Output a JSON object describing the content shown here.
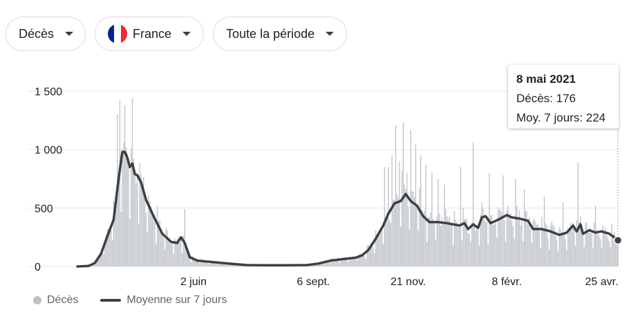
{
  "filters": {
    "metric": "Décès",
    "country": "France",
    "country_flag_colors": [
      "#002395",
      "#ffffff",
      "#ed2939"
    ],
    "period": "Toute la période"
  },
  "tooltip": {
    "date": "8 mai 2021",
    "deaths_label": "Décès: 176",
    "avg_label": "Moy. 7 jours: 224"
  },
  "legend": {
    "bars": "Décès",
    "line": "Moyenne sur 7 jours"
  },
  "colors": {
    "bars": "#bdc1c6",
    "line": "#3c4043",
    "grid": "#e8eaed",
    "axis_text": "#202124"
  },
  "chart_data": {
    "type": "bar",
    "x_start": "2020-03-01",
    "x_end": "2021-05-08",
    "y_ticks": [
      0,
      500,
      1000,
      1500
    ],
    "y_tick_labels": [
      "0",
      "500",
      "1 000",
      "1 500"
    ],
    "ylim": [
      0,
      1500
    ],
    "x_ticks": [
      {
        "date": "2020-06-02",
        "label": "2 juin"
      },
      {
        "date": "2020-09-06",
        "label": "6 sept."
      },
      {
        "date": "2020-11-21",
        "label": "21 nov."
      },
      {
        "date": "2021-02-08",
        "label": "8 févr."
      },
      {
        "date": "2021-04-25",
        "label": "25 avr."
      }
    ],
    "series": [
      {
        "name": "Moyenne sur 7 jours",
        "kind": "line",
        "points": [
          [
            "2020-03-01",
            0
          ],
          [
            "2020-03-10",
            5
          ],
          [
            "2020-03-15",
            30
          ],
          [
            "2020-03-20",
            110
          ],
          [
            "2020-03-25",
            260
          ],
          [
            "2020-03-30",
            400
          ],
          [
            "2020-04-03",
            750
          ],
          [
            "2020-04-06",
            980
          ],
          [
            "2020-04-08",
            980
          ],
          [
            "2020-04-10",
            930
          ],
          [
            "2020-04-12",
            850
          ],
          [
            "2020-04-14",
            880
          ],
          [
            "2020-04-16",
            790
          ],
          [
            "2020-04-18",
            780
          ],
          [
            "2020-04-21",
            720
          ],
          [
            "2020-04-25",
            570
          ],
          [
            "2020-05-01",
            430
          ],
          [
            "2020-05-08",
            280
          ],
          [
            "2020-05-15",
            210
          ],
          [
            "2020-05-20",
            200
          ],
          [
            "2020-05-23",
            250
          ],
          [
            "2020-05-26",
            200
          ],
          [
            "2020-05-30",
            80
          ],
          [
            "2020-06-05",
            50
          ],
          [
            "2020-06-15",
            40
          ],
          [
            "2020-06-30",
            25
          ],
          [
            "2020-07-15",
            12
          ],
          [
            "2020-08-01",
            10
          ],
          [
            "2020-08-15",
            10
          ],
          [
            "2020-09-01",
            12
          ],
          [
            "2020-09-10",
            25
          ],
          [
            "2020-09-20",
            50
          ],
          [
            "2020-10-01",
            65
          ],
          [
            "2020-10-10",
            75
          ],
          [
            "2020-10-15",
            95
          ],
          [
            "2020-10-20",
            140
          ],
          [
            "2020-10-25",
            220
          ],
          [
            "2020-11-01",
            350
          ],
          [
            "2020-11-05",
            450
          ],
          [
            "2020-11-10",
            540
          ],
          [
            "2020-11-15",
            560
          ],
          [
            "2020-11-19",
            620
          ],
          [
            "2020-11-23",
            560
          ],
          [
            "2020-11-28",
            520
          ],
          [
            "2020-12-03",
            430
          ],
          [
            "2020-12-08",
            380
          ],
          [
            "2020-12-15",
            380
          ],
          [
            "2020-12-22",
            370
          ],
          [
            "2021-01-01",
            350
          ],
          [
            "2021-01-05",
            370
          ],
          [
            "2021-01-08",
            320
          ],
          [
            "2021-01-12",
            360
          ],
          [
            "2021-01-16",
            330
          ],
          [
            "2021-01-19",
            420
          ],
          [
            "2021-01-22",
            430
          ],
          [
            "2021-01-26",
            370
          ],
          [
            "2021-02-01",
            400
          ],
          [
            "2021-02-08",
            440
          ],
          [
            "2021-02-12",
            420
          ],
          [
            "2021-02-18",
            410
          ],
          [
            "2021-02-25",
            390
          ],
          [
            "2021-03-01",
            320
          ],
          [
            "2021-03-08",
            320
          ],
          [
            "2021-03-15",
            300
          ],
          [
            "2021-03-22",
            270
          ],
          [
            "2021-03-28",
            290
          ],
          [
            "2021-04-02",
            350
          ],
          [
            "2021-04-05",
            300
          ],
          [
            "2021-04-08",
            360
          ],
          [
            "2021-04-10",
            280
          ],
          [
            "2021-04-15",
            310
          ],
          [
            "2021-04-20",
            290
          ],
          [
            "2021-04-25",
            300
          ],
          [
            "2021-05-01",
            280
          ],
          [
            "2021-05-05",
            250
          ],
          [
            "2021-05-08",
            224
          ]
        ]
      },
      {
        "name": "Décès",
        "kind": "bar",
        "spikes": [
          [
            "2020-04-02",
            1300
          ],
          [
            "2020-04-04",
            1420
          ],
          [
            "2020-04-06",
            1000
          ],
          [
            "2020-04-08",
            1380
          ],
          [
            "2020-04-10",
            970
          ],
          [
            "2020-04-14",
            1440
          ],
          [
            "2020-04-18",
            800
          ],
          [
            "2020-04-22",
            700
          ],
          [
            "2020-05-26",
            490
          ],
          [
            "2020-11-02",
            850
          ],
          [
            "2020-11-05",
            850
          ],
          [
            "2020-11-08",
            950
          ],
          [
            "2020-11-11",
            1210
          ],
          [
            "2020-11-14",
            900
          ],
          [
            "2020-11-17",
            1230
          ],
          [
            "2020-11-20",
            800
          ],
          [
            "2020-11-23",
            1170
          ],
          [
            "2020-11-27",
            1050
          ],
          [
            "2020-12-01",
            950
          ],
          [
            "2020-12-05",
            870
          ],
          [
            "2020-12-10",
            800
          ],
          [
            "2020-12-15",
            750
          ],
          [
            "2020-12-20",
            700
          ],
          [
            "2021-01-02",
            850
          ],
          [
            "2021-01-12",
            1060
          ],
          [
            "2021-01-25",
            800
          ],
          [
            "2021-02-05",
            780
          ],
          [
            "2021-02-15",
            750
          ],
          [
            "2021-02-22",
            660
          ],
          [
            "2021-03-10",
            600
          ],
          [
            "2021-03-25",
            550
          ],
          [
            "2021-04-06",
            890
          ],
          [
            "2021-04-20",
            520
          ]
        ]
      }
    ],
    "highlight": {
      "date": "2021-05-08",
      "value": 176,
      "avg": 224
    }
  }
}
